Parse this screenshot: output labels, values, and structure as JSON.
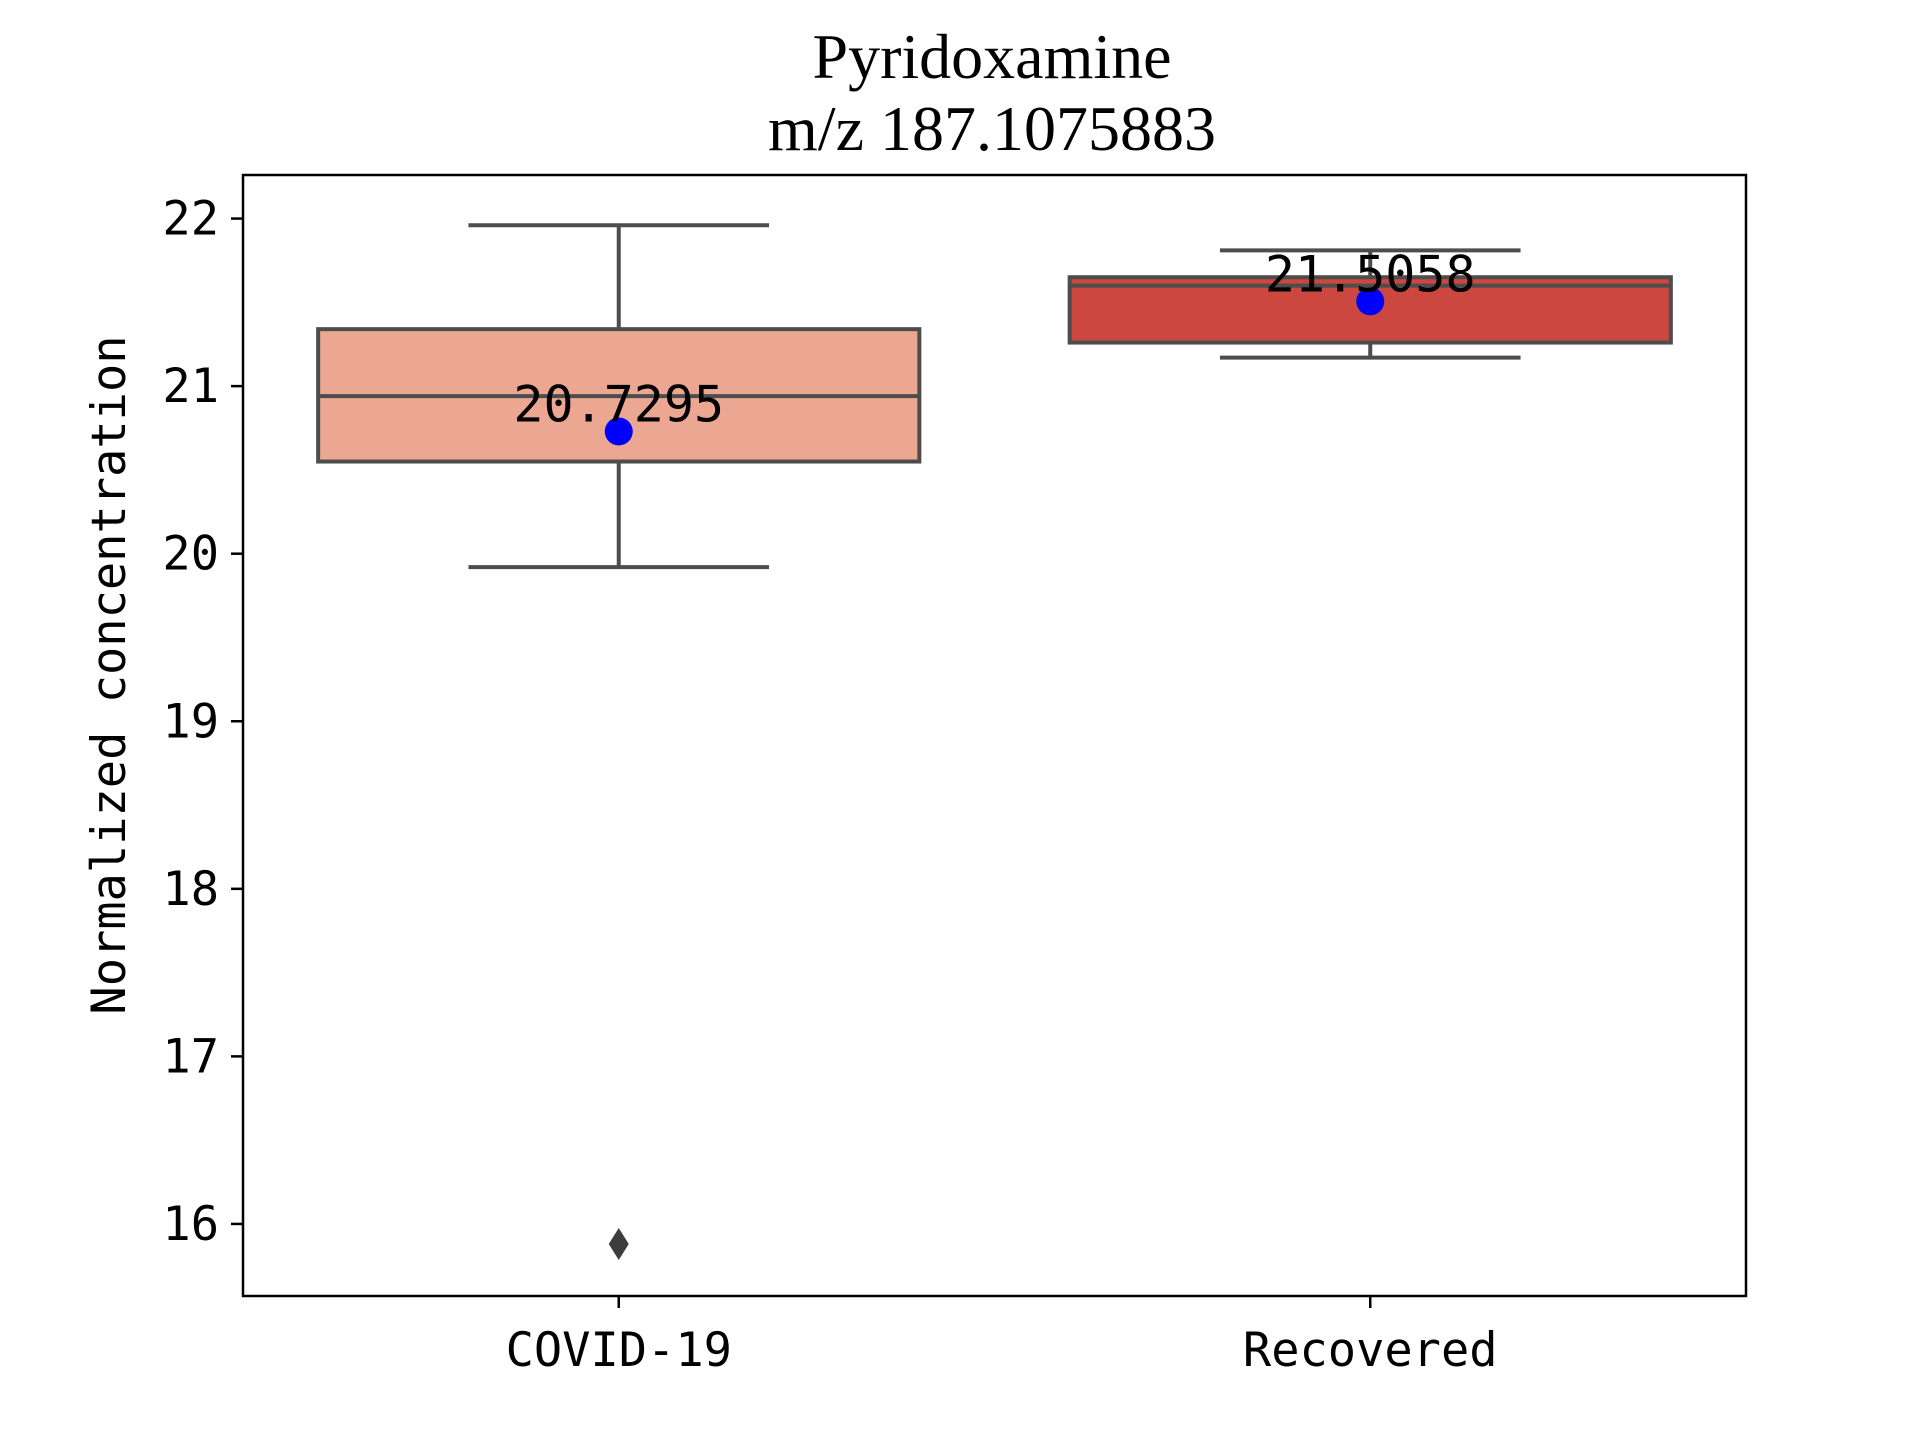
{
  "chart_data": {
    "type": "box",
    "title": "Pyridoxamine",
    "subtitle": "m/z  187.1075883",
    "xlabel": "",
    "ylabel": "Normalized concentration",
    "ylim": [
      15.57,
      22.26
    ],
    "yticks": [
      "16",
      "17",
      "18",
      "19",
      "20",
      "21",
      "22"
    ],
    "grid": false,
    "categories": [
      "COVID-19",
      "Recovered"
    ],
    "boxes": [
      {
        "category": "COVID-19",
        "whisker_low": 19.92,
        "q1": 20.55,
        "median": 20.94,
        "q3": 21.34,
        "whisker_high": 21.96,
        "mean": 20.7295,
        "mean_label": "20.7295",
        "outliers": [
          15.88
        ],
        "color": "#eca792"
      },
      {
        "category": "Recovered",
        "whisker_low": 21.17,
        "q1": 21.26,
        "median": 21.6,
        "q3": 21.65,
        "whisker_high": 21.81,
        "mean": 21.5058,
        "mean_label": "21.5058",
        "outliers": [],
        "color": "#cb4740"
      }
    ],
    "colors": {
      "box_edge": "#4d4d4d",
      "mean_marker": "#0000ff",
      "axes": "#000000"
    }
  }
}
